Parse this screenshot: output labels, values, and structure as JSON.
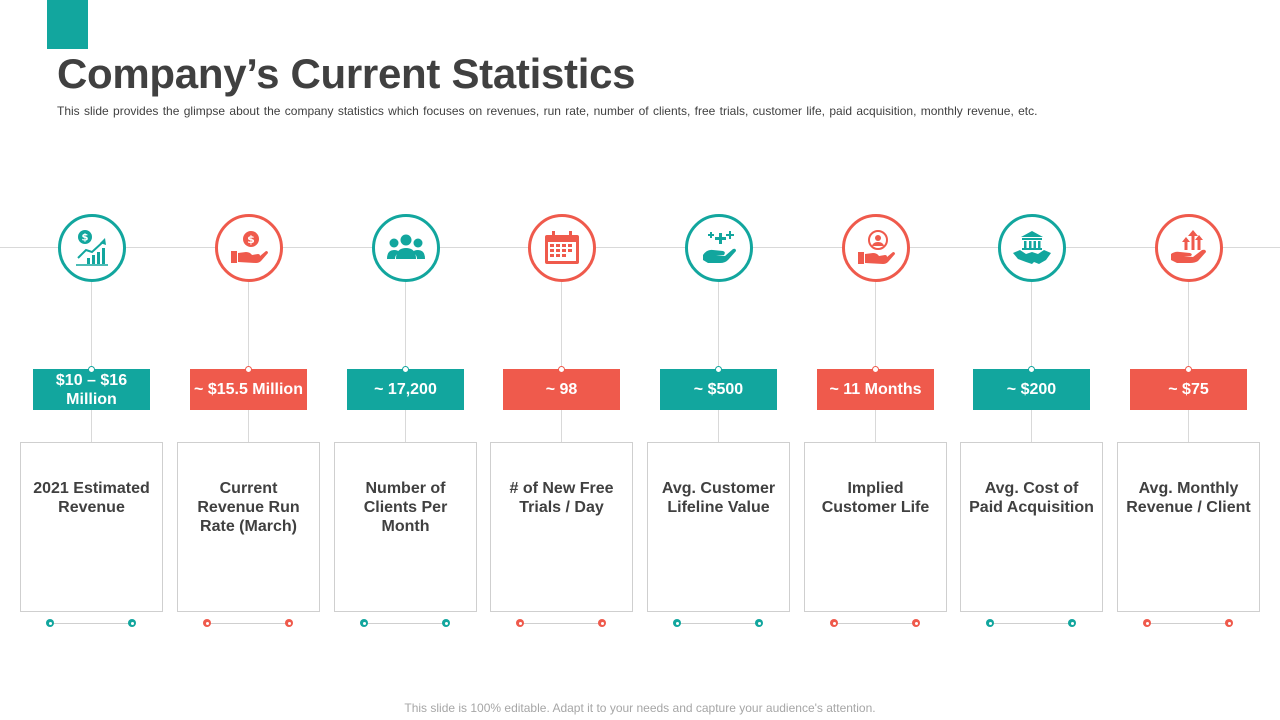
{
  "header": {
    "title": "Company’s Current Statistics",
    "subtitle": "This slide provides  the glimpse about the company statistics which focuses on revenues,  run rate, number of clients, free trials, customer life, paid acquisition, monthly revenue,  etc."
  },
  "colors": {
    "teal": "#12a69e",
    "red": "#ef5a4c",
    "text": "#404040"
  },
  "stats": [
    {
      "icon": "dollar-growth-chart-icon",
      "value": "$10 – $16 Million",
      "label": "2021 Estimated Revenue",
      "color": "teal"
    },
    {
      "icon": "hand-dollar-coin-icon",
      "value": "~ $15.5 Million",
      "label": "Current Revenue Run Rate (March)",
      "color": "red"
    },
    {
      "icon": "group-people-icon",
      "value": "~ 17,200",
      "label": "Number of Clients Per Month",
      "color": "teal"
    },
    {
      "icon": "calendar-icon",
      "value": "~ 98",
      "label": "# of New Free Trials / Day",
      "color": "red"
    },
    {
      "icon": "hand-plus-care-icon",
      "value": "~ $500",
      "label": "Avg. Customer Lifeline Value",
      "color": "teal"
    },
    {
      "icon": "hand-person-icon",
      "value": "~ 11 Months",
      "label": "Implied Customer Life",
      "color": "red"
    },
    {
      "icon": "bank-handshake-icon",
      "value": "~ $200",
      "label": "Avg. Cost of Paid Acquisition",
      "color": "teal"
    },
    {
      "icon": "hand-up-arrows-icon",
      "value": "~ $75",
      "label": "Avg. Monthly Revenue / Client",
      "color": "red"
    }
  ],
  "footer": {
    "text": "This slide is 100% editable. Adapt it to your needs and capture your audience's attention."
  }
}
